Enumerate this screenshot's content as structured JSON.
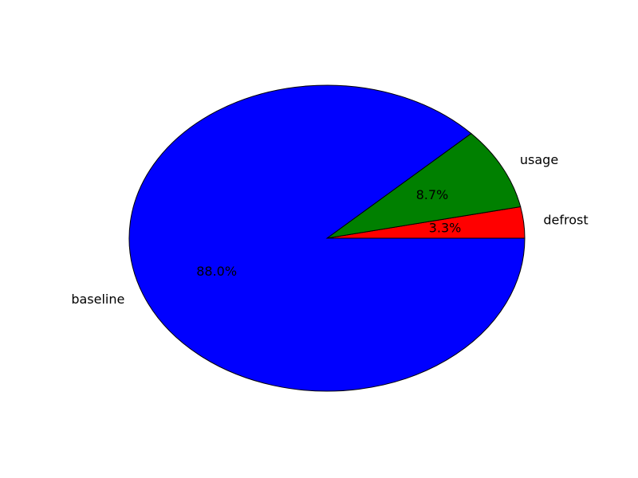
{
  "chart_data": {
    "type": "pie",
    "slices": [
      {
        "label": "defrost",
        "value": 3.3,
        "pct_label": "3.3%",
        "color": "#ff0000"
      },
      {
        "label": "usage",
        "value": 8.7,
        "pct_label": "8.7%",
        "color": "#008000"
      },
      {
        "label": "baseline",
        "value": 88.0,
        "pct_label": "88.0%",
        "color": "#0000ff"
      }
    ],
    "start_angle_deg": 0,
    "direction": "counterclockwise",
    "legend": "none"
  }
}
